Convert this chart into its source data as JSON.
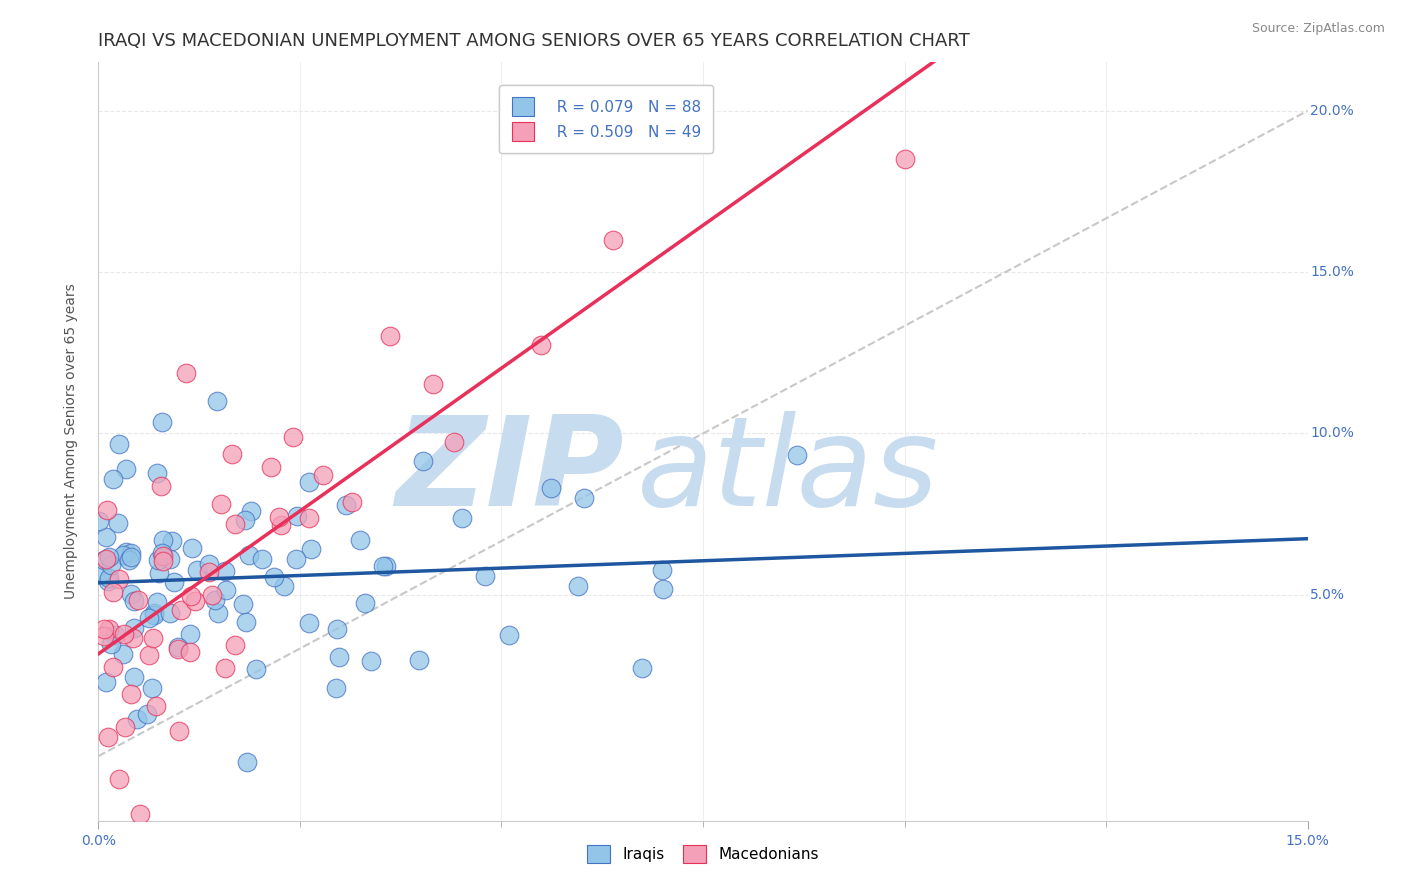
{
  "title": "IRAQI VS MACEDONIAN UNEMPLOYMENT AMONG SENIORS OVER 65 YEARS CORRELATION CHART",
  "source": "Source: ZipAtlas.com",
  "ylabel": "Unemployment Among Seniors over 65 years",
  "xlim": [
    0.0,
    0.15
  ],
  "ylim": [
    -0.02,
    0.215
  ],
  "iraqi_R": 0.079,
  "iraqi_N": 88,
  "macedonian_R": 0.509,
  "macedonian_N": 49,
  "iraqi_color": "#92C5E8",
  "macedonian_color": "#F4A0B8",
  "iraqi_edge_color": "#4472C4",
  "macedonian_edge_color": "#E8305A",
  "iraqi_trend_color": "#1E56A0",
  "macedonian_trend_color": "#E8305A",
  "ref_line_color": "#C8C8C8",
  "watermark_zip_color": "#C8DCF0",
  "watermark_atlas_color": "#C8DCF0",
  "background_color": "#FFFFFF",
  "grid_color": "#E8E8E8",
  "tick_color": "#4472C4",
  "title_fontsize": 13,
  "axis_label_fontsize": 10,
  "tick_fontsize": 10,
  "legend_fontsize": 11,
  "source_fontsize": 9
}
